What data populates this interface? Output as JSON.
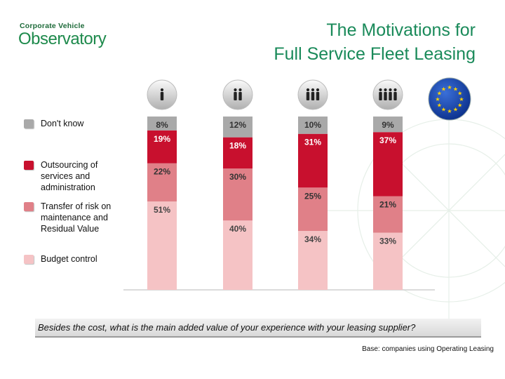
{
  "logo": {
    "line1": "Corporate Vehicle",
    "line2": "Observatory"
  },
  "title": {
    "line1": "The Motivations for",
    "line2": "Full Service Fleet Leasing"
  },
  "colors": {
    "title": "#1a8a5a",
    "dont_know": "#a9a9a9",
    "outsourcing": "#c8102e",
    "transfer_risk": "#e08088",
    "budget": "#f5c3c5"
  },
  "chart_data": {
    "type": "bar",
    "stacked": true,
    "normalized_percent": true,
    "categories": [
      "single-person-icon",
      "two-persons-icon",
      "three-persons-icon",
      "four-persons-icon"
    ],
    "series": [
      {
        "name": "Budget control",
        "values": [
          51,
          40,
          34,
          33
        ],
        "labels": [
          "51%",
          "40%",
          "34%",
          "33%"
        ]
      },
      {
        "name": "Transfer of risk on maintenance and Residual Value",
        "values": [
          22,
          30,
          25,
          21
        ],
        "labels": [
          "22%",
          "30%",
          "25%",
          "21%"
        ]
      },
      {
        "name": "Outsourcing of services and administration",
        "values": [
          19,
          18,
          31,
          37
        ],
        "labels": [
          "19%",
          "18%",
          "31%",
          "37%"
        ]
      },
      {
        "name": "Don't know",
        "values": [
          8,
          12,
          10,
          9
        ],
        "labels": [
          "8%",
          "12%",
          "10%",
          "9%"
        ]
      }
    ],
    "legend_position": "left",
    "grid": false
  },
  "legend": [
    {
      "label": "Don't know"
    },
    {
      "label": "Outsourcing of services and administration"
    },
    {
      "label": "Transfer of risk on maintenance and Residual Value"
    },
    {
      "label": "Budget control"
    }
  ],
  "question": "Besides the cost, what is the main added value of your experience with your leasing supplier?",
  "base_note": "Base: companies using Operating Leasing",
  "icons": {
    "category_icons": [
      "single-person-icon",
      "two-persons-icon",
      "three-persons-icon",
      "four-persons-icon"
    ],
    "eu": "eu-flag-icon"
  }
}
